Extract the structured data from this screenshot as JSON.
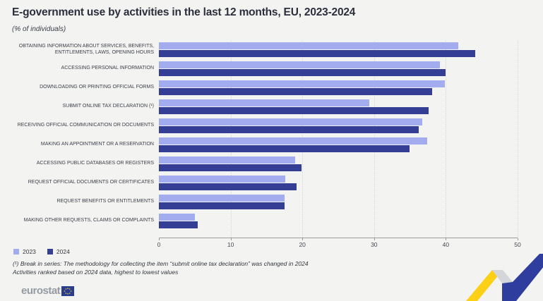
{
  "title": "E-government use by activities in the last 12 months, EU, 2023-2024",
  "subtitle": "(% of individuals)",
  "legend": [
    {
      "label": "2023",
      "color": "#a4acf0"
    },
    {
      "label": "2024",
      "color": "#333e94"
    }
  ],
  "footnotes": {
    "line1": "(¹) Break in series: The methodology for collecting the item “submit online tax declaration” was changed in 2024",
    "line2": "Activities ranked based on 2024 data, highest to lowest values"
  },
  "logo": {
    "text": "eurostat"
  },
  "colors": {
    "bar_2023": "#a4acf0",
    "bar_2024": "#333e94",
    "background": "#f3f3f1",
    "ribbon_yellow": "#fcd017",
    "ribbon_gray": "#d4d6d9",
    "ribbon_blue": "#2f3e9e",
    "eu_flag_navy": "#2a3c8f",
    "eu_flag_stars": "#ffd617"
  },
  "chart_data": {
    "type": "bar",
    "orientation": "horizontal",
    "title": "E-government use by activities in the last 12 months, EU, 2023-2024",
    "xlabel": "",
    "ylabel": "% of individuals",
    "xlim": [
      0,
      50
    ],
    "xticks": [
      0,
      10,
      20,
      30,
      40,
      50
    ],
    "grid": "vertical-dotted",
    "legend_position": "bottom-left",
    "categories": [
      "Obtaining information about services, benefits, entitlements, laws, opening hours",
      "Accessing personal information",
      "Downloading or printing official forms",
      "Submit online tax declaration (¹)",
      "Receiving official communication or documents",
      "Making an appointment or a reservation",
      "Accessing public databases or registers",
      "Request official documents or certificates",
      "Request benefits or entitlements",
      "Making other requests, claims or complaints"
    ],
    "series": [
      {
        "name": "2023",
        "color": "#a4acf0",
        "values": [
          41.7,
          39.2,
          39.9,
          29.3,
          36.7,
          37.4,
          19.0,
          17.6,
          17.5,
          5.0
        ]
      },
      {
        "name": "2024",
        "color": "#333e94",
        "values": [
          44.1,
          40.0,
          38.1,
          37.6,
          36.2,
          34.9,
          19.9,
          19.2,
          17.5,
          5.4
        ]
      }
    ]
  }
}
